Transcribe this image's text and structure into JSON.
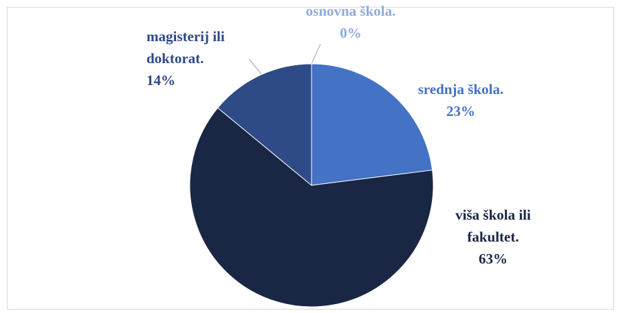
{
  "chart_data": {
    "type": "pie",
    "categories": [
      "osnovna škola.",
      "srednja škola.",
      "viša škola ili fakultet.",
      "magisterij ili doktorat."
    ],
    "values": [
      0,
      23,
      63,
      14
    ],
    "value_labels": [
      "0%",
      "23%",
      "63%",
      "14%"
    ],
    "colors": [
      "#8faadc",
      "#4472c4",
      "#1a2744",
      "#2e4a87"
    ]
  }
}
